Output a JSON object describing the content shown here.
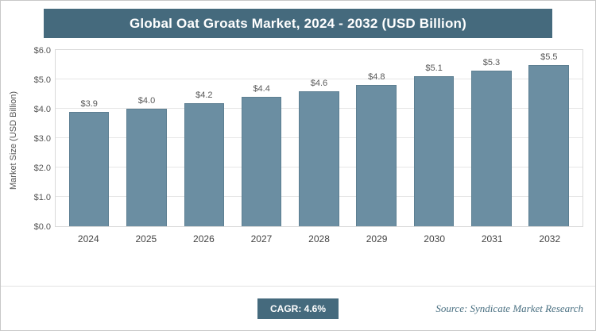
{
  "title": "Global Oat Groats Market, 2024 - 2032 (USD Billion)",
  "footer": {
    "cagr_label": "CAGR: 4.6%",
    "source": "Source: Syndicate Market Research"
  },
  "colors": {
    "header_bg": "#456a7d",
    "bar": "#6b8ea2",
    "bar_border": "#5d7f92",
    "badge_bg": "#456a7d",
    "source_text": "#4a7082"
  },
  "chart_data": {
    "type": "bar",
    "title": "Global Oat Groats Market, 2024 - 2032 (USD Billion)",
    "categories": [
      "2024",
      "2025",
      "2026",
      "2027",
      "2028",
      "2029",
      "2030",
      "2031",
      "2032"
    ],
    "values": [
      3.9,
      4.0,
      4.2,
      4.4,
      4.6,
      4.8,
      5.1,
      5.3,
      5.5
    ],
    "data_labels": [
      "$3.9",
      "$4.0",
      "$4.2",
      "$4.4",
      "$4.6",
      "$4.8",
      "$5.1",
      "$5.3",
      "$5.5"
    ],
    "xlabel": "",
    "ylabel": "Market Size (USD Billion)",
    "ylim": [
      0,
      6
    ],
    "yticks": [
      "$0.0",
      "$1.0",
      "$2.0",
      "$3.0",
      "$4.0",
      "$5.0",
      "$6.0"
    ],
    "grid": true,
    "legend": "none"
  }
}
